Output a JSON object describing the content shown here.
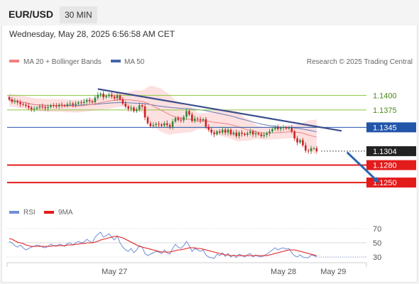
{
  "header": {
    "symbol": "EUR/USD",
    "timeframe": "30 MIN",
    "timestamp": "Wednesday, May 28, 2025 6:56:58 AM CET"
  },
  "legend": {
    "ma20_bb": "MA 20 + Bollinger Bands",
    "ma50": "MA 50",
    "credit": "Research © 2025 Trading Central",
    "rsi": "RSI",
    "rsi_ma": "9MA"
  },
  "colors": {
    "up_candle": "#2e8b3e",
    "down_candle": "#cc2222",
    "ma20": "#f08080",
    "bollinger_fill": "#fde0e0",
    "ma50": "#4466aa",
    "resistance": "#8cc63f",
    "pivot": "#2255aa",
    "support": "#e31b1b",
    "trendline": "#3a4e8c",
    "arrow": "#2a64b0",
    "rsi_line": "#6f8fd8",
    "rsi_ma_line": "#e31b1b"
  },
  "chart_data": {
    "type": "candlestick",
    "symbol": "EUR/USD",
    "interval": "30 MIN",
    "x_tick_labels": [
      "May 27",
      "May 28",
      "May 29"
    ],
    "y_range": [
      1.1222,
      1.1442
    ],
    "levels": [
      {
        "value": 1.14,
        "label": "1.1400",
        "kind": "resistance"
      },
      {
        "value": 1.1375,
        "label": "1.1375",
        "kind": "resistance"
      },
      {
        "value": 1.1345,
        "label": "1.1345",
        "kind": "pivot"
      },
      {
        "value": 1.1304,
        "label": "1.1304",
        "kind": "last"
      },
      {
        "value": 1.128,
        "label": "1.1280",
        "kind": "support"
      },
      {
        "value": 1.125,
        "label": "1.1250",
        "kind": "support"
      }
    ],
    "close_series": [
      1.1393,
      1.1389,
      1.139,
      1.1388,
      1.1385,
      1.1384,
      1.1382,
      1.1379,
      1.1376,
      1.1377,
      1.1379,
      1.1381,
      1.138,
      1.1378,
      1.138,
      1.1383,
      1.1382,
      1.1381,
      1.1384,
      1.1383,
      1.1382,
      1.1385,
      1.1386,
      1.1384,
      1.1386,
      1.1388,
      1.1387,
      1.1389,
      1.1392,
      1.139,
      1.1388,
      1.1396,
      1.1401,
      1.1403,
      1.1397,
      1.1399,
      1.1401,
      1.1398,
      1.1395,
      1.14,
      1.1393,
      1.1386,
      1.1381,
      1.1377,
      1.1379,
      1.1373,
      1.1376,
      1.1383,
      1.1381,
      1.1362,
      1.1352,
      1.1347,
      1.1349,
      1.1351,
      1.135,
      1.1348,
      1.1352,
      1.1349,
      1.1346,
      1.1355,
      1.1361,
      1.1358,
      1.1357,
      1.1363,
      1.1373,
      1.1367,
      1.1356,
      1.136,
      1.1359,
      1.1357,
      1.1359,
      1.1346,
      1.1341,
      1.1336,
      1.1333,
      1.1338,
      1.1336,
      1.1341,
      1.1336,
      1.1341,
      1.1333,
      1.1336,
      1.133,
      1.1336,
      1.1334,
      1.1332,
      1.1335,
      1.1338,
      1.1333,
      1.1335,
      1.1333,
      1.133,
      1.1332,
      1.1335,
      1.1338,
      1.1342,
      1.1345,
      1.1342,
      1.1344,
      1.1345,
      1.1343,
      1.1344,
      1.1338,
      1.1326,
      1.1319,
      1.1323,
      1.1314,
      1.1305,
      1.1304,
      1.1309,
      1.1309,
      1.1304
    ],
    "trendline": [
      [
        32,
        1.1411
      ],
      [
        120,
        1.1339
      ]
    ],
    "arrow": {
      "from": [
        122,
        1.1302
      ],
      "to": [
        133,
        1.1252
      ]
    },
    "rsi": {
      "y_range": [
        25,
        80
      ],
      "y_ticks": [
        30,
        50,
        70
      ],
      "values": [
        52,
        50,
        46,
        44,
        47,
        43,
        40,
        42,
        44,
        45,
        47,
        46,
        44,
        43,
        45,
        48,
        46,
        45,
        48,
        47,
        45,
        49,
        50,
        47,
        50,
        52,
        50,
        51,
        55,
        52,
        50,
        58,
        62,
        65,
        58,
        60,
        63,
        58,
        54,
        60,
        50,
        44,
        40,
        38,
        42,
        36,
        40,
        46,
        44,
        35,
        32,
        34,
        36,
        38,
        37,
        35,
        40,
        36,
        34,
        42,
        48,
        44,
        42,
        46,
        52,
        46,
        38,
        42,
        40,
        38,
        40,
        33,
        30,
        29,
        28,
        34,
        32,
        36,
        31,
        35,
        30,
        33,
        29,
        34,
        32,
        30,
        33,
        35,
        30,
        33,
        31,
        30,
        32,
        34,
        37,
        40,
        43,
        40,
        42,
        43,
        41,
        42,
        36,
        32,
        30,
        33,
        30,
        29,
        29,
        33,
        32,
        30
      ],
      "ma_values": [
        56,
        55,
        53,
        51,
        50,
        49,
        47,
        46,
        45,
        45,
        45,
        45,
        45,
        45,
        45,
        45,
        46,
        46,
        46,
        46,
        46,
        47,
        47,
        47,
        48,
        48,
        49,
        49,
        50,
        50,
        50,
        51,
        52,
        54,
        55,
        56,
        57,
        58,
        59,
        59,
        58,
        57,
        55,
        53,
        51,
        49,
        47,
        45,
        44,
        43,
        42,
        41,
        40,
        39,
        38,
        37,
        37,
        37,
        37,
        38,
        39,
        40,
        40,
        41,
        42,
        43,
        43,
        43,
        42,
        42,
        41,
        40,
        39,
        38,
        37,
        36,
        35,
        34,
        33,
        33,
        32,
        32,
        32,
        32,
        32,
        32,
        32,
        32,
        32,
        32,
        32,
        32,
        32,
        32,
        33,
        34,
        35,
        36,
        37,
        38,
        39,
        40,
        40,
        40,
        39,
        38,
        37,
        36,
        35,
        34,
        33,
        32
      ]
    }
  }
}
